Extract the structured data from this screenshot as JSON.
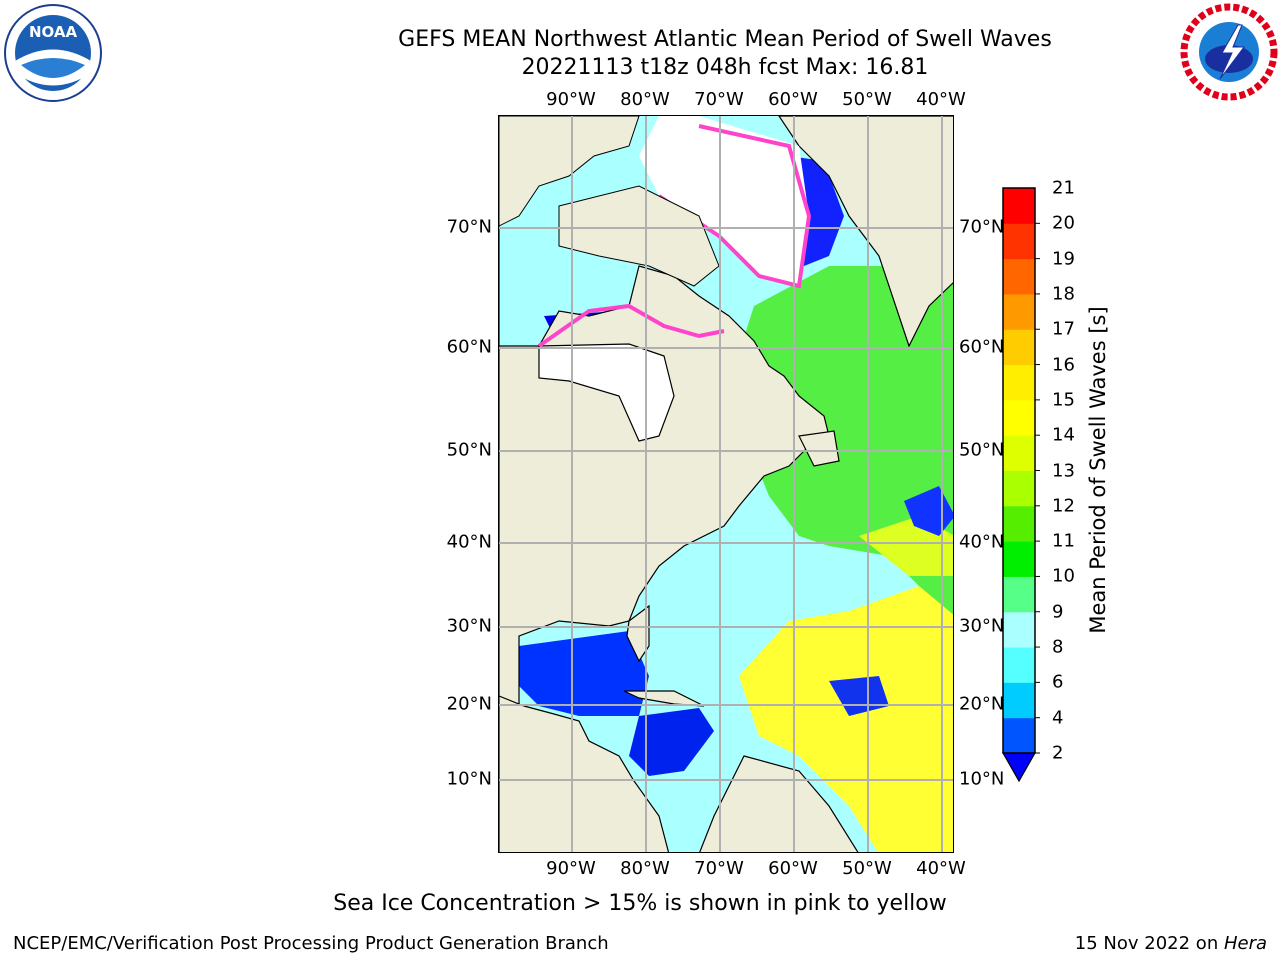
{
  "title_line1": "GEFS MEAN Northwest Atlantic Mean Period of Swell Waves",
  "title_line2": "20221113 t18z 048h fcst   Max: 16.81",
  "lon_labels": [
    "90°W",
    "80°W",
    "70°W",
    "60°W",
    "50°W",
    "40°W"
  ],
  "lat_labels": [
    "70°N",
    "60°N",
    "50°N",
    "40°N",
    "30°N",
    "20°N",
    "10°N"
  ],
  "colorbar": {
    "label": "Mean Period of Swell Waves [s]",
    "ticks": [
      "2",
      "4",
      "6",
      "8",
      "9",
      "10",
      "11",
      "12",
      "13",
      "14",
      "15",
      "16",
      "17",
      "18",
      "19",
      "20",
      "21"
    ],
    "colors": [
      "#0055ff",
      "#00ccff",
      "#55ffff",
      "#aaffff",
      "#55ff88",
      "#00ee00",
      "#55ee00",
      "#aaff00",
      "#ddff00",
      "#ffff00",
      "#ffee00",
      "#ffcc00",
      "#ff9900",
      "#ff6600",
      "#ff3300",
      "#ff0000"
    ],
    "underflow_color": "#0000ff"
  },
  "colors": {
    "land": "#eeedd9",
    "ice": "#ffffff",
    "ice_edge": "#ff44cc",
    "grid": "#b0b0b0"
  },
  "footnote": "Sea Ice Concentration > 15% is shown in pink to yellow",
  "footer_left": "NCEP/EMC/Verification Post Processing Product Generation Branch",
  "footer_right_date": "15 Nov 2022 on ",
  "footer_right_host": "Hera",
  "logos": {
    "left_name": "noara-logo",
    "left_text": "NOAA",
    "right_text": "NATIONAL WEATHER SERVICE"
  }
}
